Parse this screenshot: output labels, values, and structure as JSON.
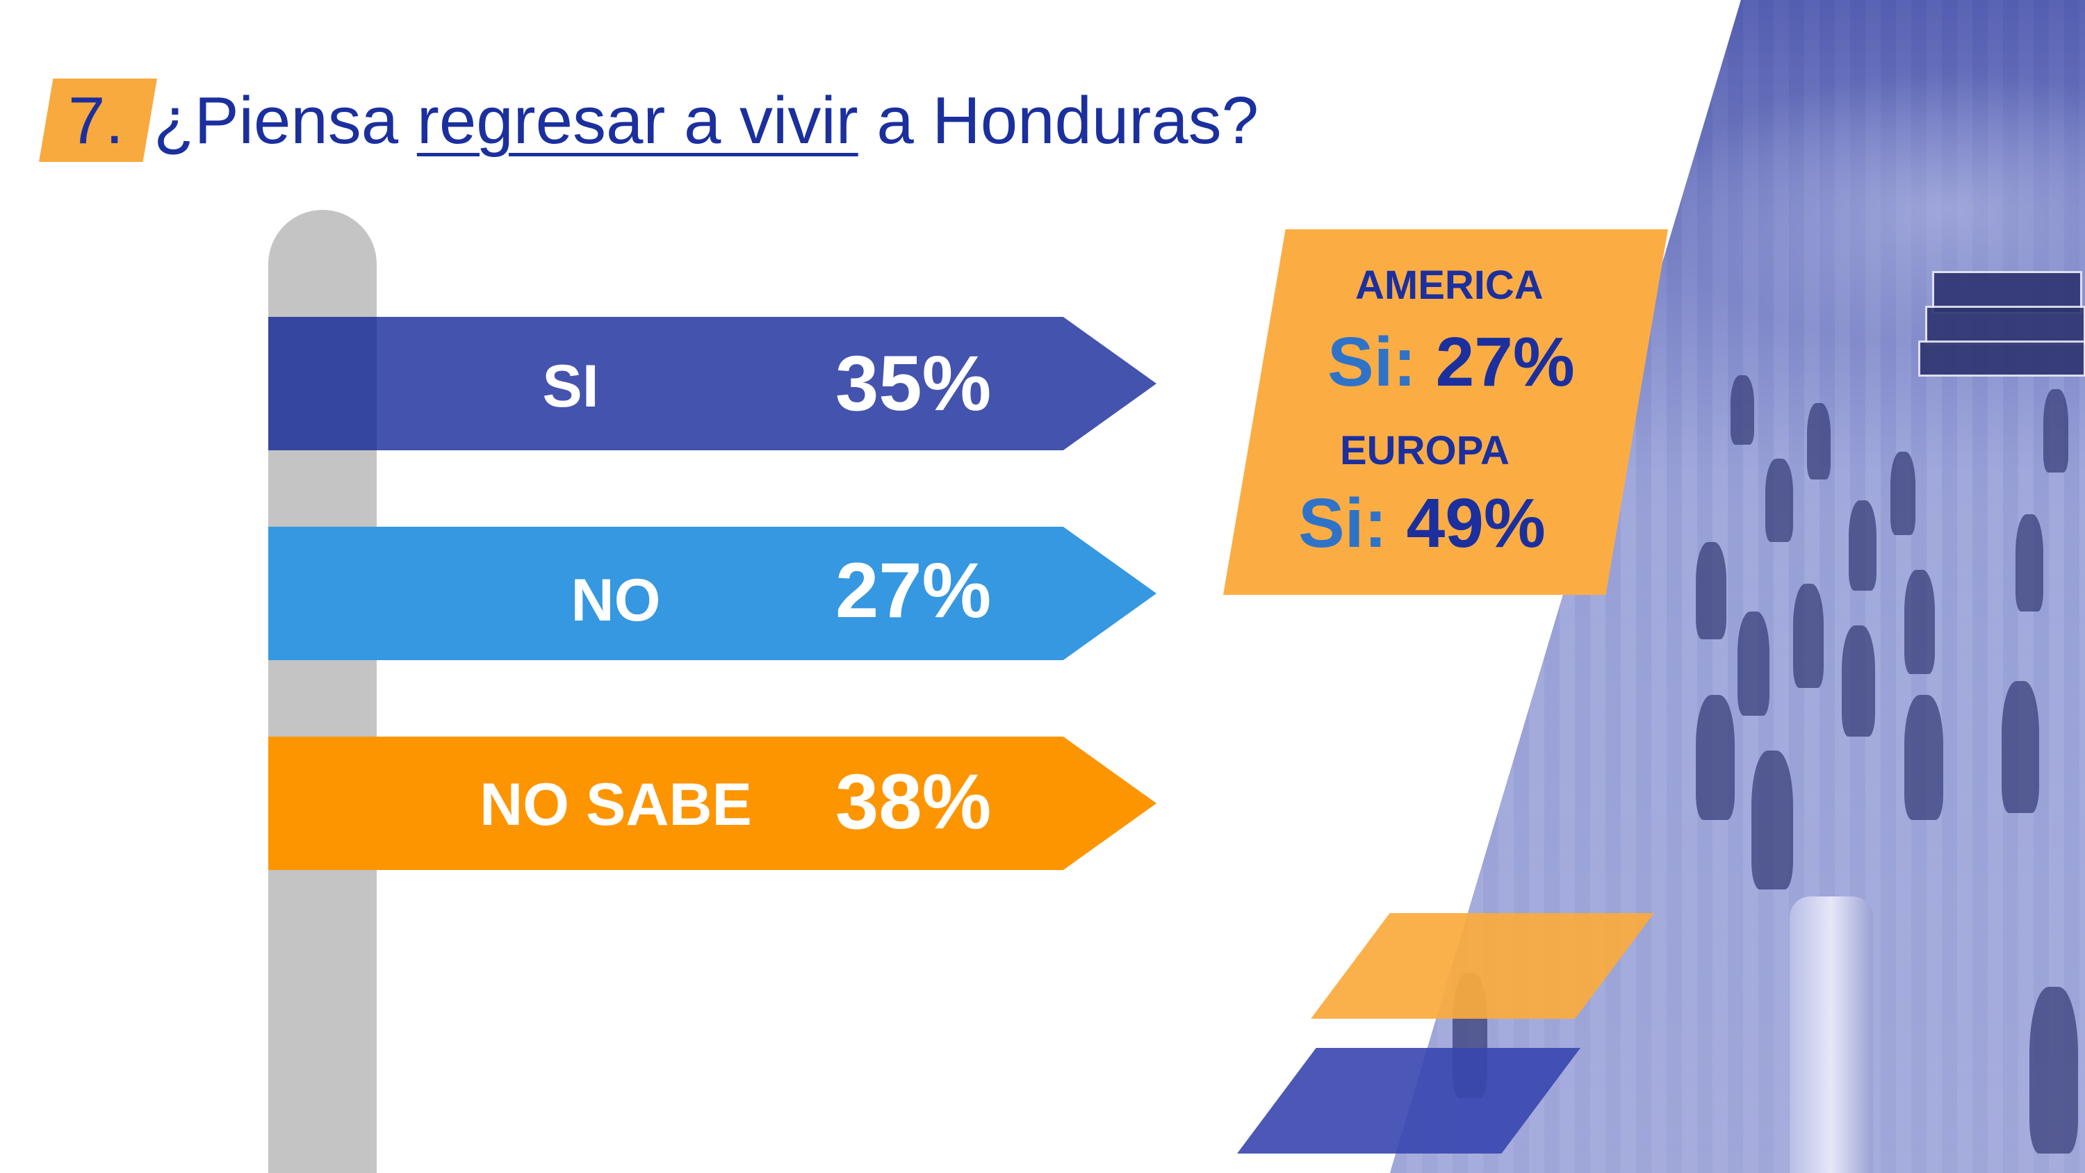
{
  "title": {
    "number": "7.",
    "prefix": "¿Piensa ",
    "underlined": "regresar a vivir",
    "suffix": " a Honduras?"
  },
  "answers": [
    {
      "label": "SI",
      "value": "35%",
      "color": "#4453ad"
    },
    {
      "label": "NO",
      "value": "27%",
      "color": "#3598e0"
    },
    {
      "label": "NO SABE",
      "value": "38%",
      "color": "#fd9500"
    }
  ],
  "regions": [
    {
      "name": "AMERICA",
      "si_label": "Si:",
      "si_value": "27%"
    },
    {
      "name": "EUROPA",
      "si_label": "Si:",
      "si_value": "49%"
    }
  ],
  "colors": {
    "accent_orange": "#f8aa3e",
    "title_blue": "#1b2f9e",
    "pole_gray": "#c4c4c4"
  },
  "background_image": "airport-crowd-photo"
}
